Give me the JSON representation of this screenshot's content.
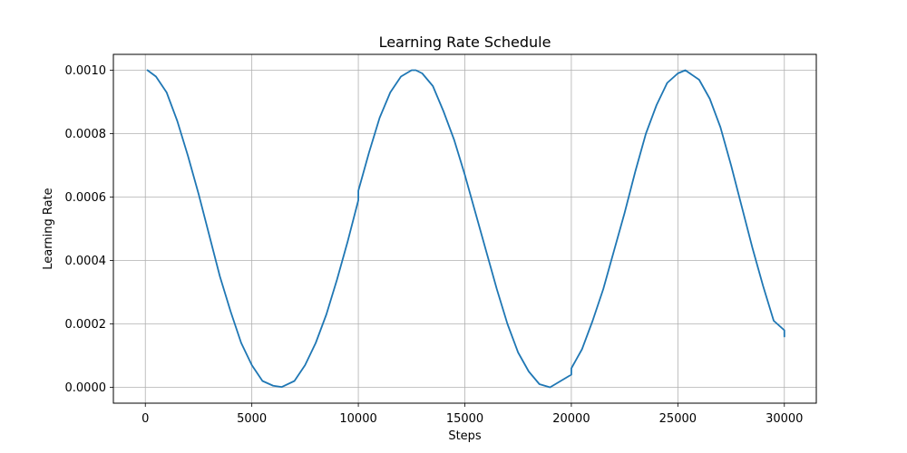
{
  "chart_data": {
    "type": "line",
    "title": "Learning Rate Schedule",
    "xlabel": "Steps",
    "ylabel": "Learning Rate",
    "xlim": [
      -1500,
      31500
    ],
    "ylim": [
      -5e-05,
      0.00105
    ],
    "x_ticks": [
      0,
      5000,
      10000,
      15000,
      20000,
      25000,
      30000
    ],
    "x_tick_labels": [
      "0",
      "5000",
      "10000",
      "15000",
      "20000",
      "25000",
      "30000"
    ],
    "y_ticks": [
      0.0,
      0.0002,
      0.0004,
      0.0006,
      0.0008,
      0.001
    ],
    "y_tick_labels": [
      "0.0000",
      "0.0002",
      "0.0004",
      "0.0006",
      "0.0008",
      "0.0010"
    ],
    "grid": true,
    "color": "#1f77b4",
    "series": [
      {
        "x": [
          100,
          500,
          1000,
          1500,
          2000,
          2500,
          3000,
          3500,
          4000,
          4500,
          5000,
          5500,
          6000,
          6400,
          7000,
          7500,
          8000,
          8500,
          9000,
          9500,
          10000,
          10001,
          10500,
          11000,
          11500,
          12000,
          12500,
          12700,
          13000,
          13500,
          14000,
          14500,
          15000,
          15500,
          16000,
          16500,
          17000,
          17500,
          18000,
          18500,
          19000,
          19500,
          20000,
          20001,
          20500,
          21000,
          21500,
          22000,
          22500,
          23000,
          23500,
          24000,
          24500,
          25000,
          25350,
          26000,
          26500,
          27000,
          27500,
          28000,
          28500,
          29000,
          29500,
          30000,
          30001
        ],
        "y": [
          0.001,
          0.00098,
          0.00093,
          0.00084,
          0.00073,
          0.00061,
          0.00048,
          0.00035,
          0.00024,
          0.00014,
          7e-05,
          2e-05,
          5e-06,
          1e-06,
          2e-05,
          7e-05,
          0.00014,
          0.00023,
          0.00034,
          0.00046,
          0.00059,
          0.00062,
          0.00074,
          0.00085,
          0.00093,
          0.00098,
          0.001,
          0.001,
          0.00099,
          0.00095,
          0.00087,
          0.00078,
          0.00067,
          0.00055,
          0.00043,
          0.00031,
          0.0002,
          0.00011,
          5e-05,
          1e-05,
          0.0,
          2e-05,
          4e-05,
          6e-05,
          0.00012,
          0.00021,
          0.00031,
          0.00043,
          0.00055,
          0.00068,
          0.0008,
          0.00089,
          0.00096,
          0.00099,
          0.001,
          0.00097,
          0.00091,
          0.00082,
          0.0007,
          0.00057,
          0.00044,
          0.00032,
          0.00021,
          0.00018,
          0.00016
        ]
      }
    ]
  }
}
